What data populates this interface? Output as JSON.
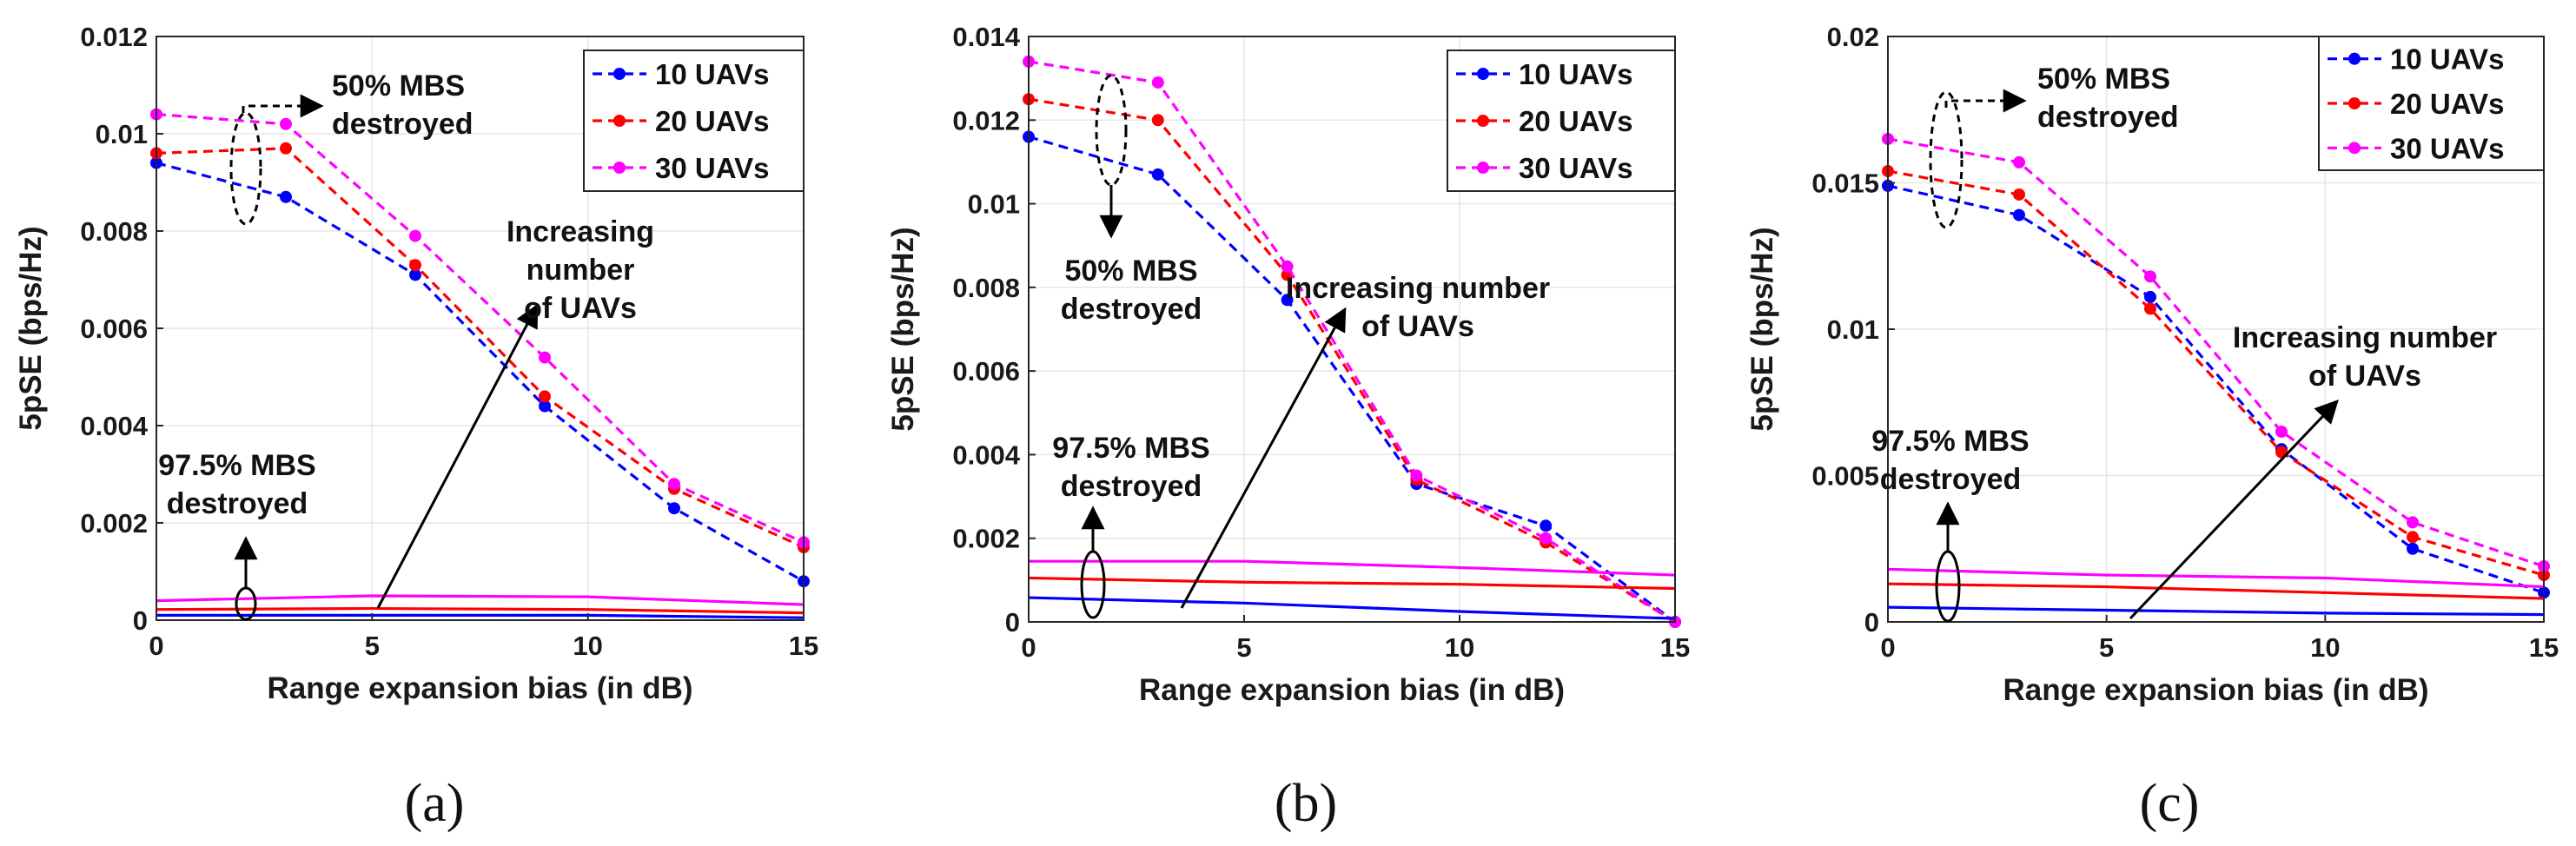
{
  "chart_data": [
    {
      "type": "line",
      "panel_caption": "(a)",
      "xlabel": "Range expansion bias (in dB)",
      "ylabel": "5pSE (bps/Hz)",
      "xlim": [
        0,
        15
      ],
      "ylim": [
        0,
        0.012
      ],
      "xticks": [
        0,
        5,
        10,
        15
      ],
      "yticks": [
        0,
        0.002,
        0.004,
        0.006,
        0.008,
        0.01,
        0.012
      ],
      "ytick_labels": [
        "0",
        "0.002",
        "0.004",
        "0.006",
        "0.008",
        "0.01",
        "0.012"
      ],
      "grid": true,
      "legend_position": "top-right",
      "series": [
        {
          "name": "10 UAVs",
          "color": "#0000ff",
          "style": "dashed",
          "markers": true,
          "x": [
            0,
            3,
            6,
            9,
            12,
            15
          ],
          "values": [
            0.0094,
            0.0087,
            0.0071,
            0.0044,
            0.0023,
            0.0008
          ]
        },
        {
          "name": "20 UAVs",
          "color": "#ff0000",
          "style": "dashed",
          "markers": true,
          "x": [
            0,
            3,
            6,
            9,
            12,
            15
          ],
          "values": [
            0.0096,
            0.0097,
            0.0073,
            0.0046,
            0.0027,
            0.0015
          ]
        },
        {
          "name": "30 UAVs",
          "color": "#ff00ff",
          "style": "dashed",
          "markers": true,
          "x": [
            0,
            3,
            6,
            9,
            12,
            15
          ],
          "values": [
            0.0104,
            0.0102,
            0.0079,
            0.0054,
            0.0028,
            0.0016
          ]
        },
        {
          "name": "10 UAVs (97.5% destroyed)",
          "color": "#0000ff",
          "style": "solid",
          "markers": false,
          "legend": false,
          "x": [
            0,
            5,
            10,
            15
          ],
          "values": [
            0.0001,
            0.0001,
            0.0001,
            5e-05
          ]
        },
        {
          "name": "20 UAVs (97.5% destroyed)",
          "color": "#ff0000",
          "style": "solid",
          "markers": false,
          "legend": false,
          "x": [
            0,
            5,
            10,
            15
          ],
          "values": [
            0.00022,
            0.00024,
            0.00022,
            0.00015
          ]
        },
        {
          "name": "30 UAVs (97.5% destroyed)",
          "color": "#ff00ff",
          "style": "solid",
          "markers": false,
          "legend": false,
          "x": [
            0,
            5,
            10,
            15
          ],
          "values": [
            0.0004,
            0.0005,
            0.00048,
            0.00032
          ]
        }
      ],
      "annotations": [
        {
          "lines": [
            "50% MBS",
            "destroyed"
          ]
        },
        {
          "lines": [
            "Increasing",
            "number",
            "of UAVs"
          ]
        },
        {
          "lines": [
            "97.5% MBS",
            "destroyed"
          ]
        }
      ]
    },
    {
      "type": "line",
      "panel_caption": "(b)",
      "xlabel": "Range expansion bias (in dB)",
      "ylabel": "5pSE (bps/Hz)",
      "xlim": [
        0,
        15
      ],
      "ylim": [
        0,
        0.014
      ],
      "xticks": [
        0,
        5,
        10,
        15
      ],
      "yticks": [
        0,
        0.002,
        0.004,
        0.006,
        0.008,
        0.01,
        0.012,
        0.014
      ],
      "ytick_labels": [
        "0",
        "0.002",
        "0.004",
        "0.006",
        "0.008",
        "0.01",
        "0.012",
        "0.014"
      ],
      "grid": true,
      "legend_position": "top-right",
      "series": [
        {
          "name": "10 UAVs",
          "color": "#0000ff",
          "style": "dashed",
          "markers": true,
          "x": [
            0,
            3,
            6,
            9,
            12,
            15
          ],
          "values": [
            0.0116,
            0.0107,
            0.0077,
            0.0033,
            0.0023,
            0.0
          ]
        },
        {
          "name": "20 UAVs",
          "color": "#ff0000",
          "style": "dashed",
          "markers": true,
          "x": [
            0,
            3,
            6,
            9,
            12,
            15
          ],
          "values": [
            0.0125,
            0.012,
            0.0083,
            0.0034,
            0.0019,
            0.0
          ]
        },
        {
          "name": "30 UAVs",
          "color": "#ff00ff",
          "style": "dashed",
          "markers": true,
          "x": [
            0,
            3,
            6,
            9,
            12,
            15
          ],
          "values": [
            0.0134,
            0.0129,
            0.0085,
            0.0035,
            0.002,
            0.0
          ]
        },
        {
          "name": "10 UAVs (97.5% destroyed)",
          "color": "#0000ff",
          "style": "solid",
          "markers": false,
          "legend": false,
          "x": [
            0,
            5,
            10,
            15
          ],
          "values": [
            0.00058,
            0.00045,
            0.00025,
            8e-05
          ]
        },
        {
          "name": "20 UAVs (97.5% destroyed)",
          "color": "#ff0000",
          "style": "solid",
          "markers": false,
          "legend": false,
          "x": [
            0,
            5,
            10,
            15
          ],
          "values": [
            0.00105,
            0.00095,
            0.0009,
            0.0008
          ]
        },
        {
          "name": "30 UAVs (97.5% destroyed)",
          "color": "#ff00ff",
          "style": "solid",
          "markers": false,
          "legend": false,
          "x": [
            0,
            5,
            10,
            15
          ],
          "values": [
            0.00145,
            0.00145,
            0.0013,
            0.00112
          ]
        }
      ],
      "annotations": [
        {
          "lines": [
            "50% MBS",
            "destroyed"
          ]
        },
        {
          "lines": [
            "Increasing number",
            "of UAVs"
          ]
        },
        {
          "lines": [
            "97.5% MBS",
            "destroyed"
          ]
        }
      ]
    },
    {
      "type": "line",
      "panel_caption": "(c)",
      "xlabel": "Range expansion bias (in dB)",
      "ylabel": "5pSE (bps/Hz)",
      "xlim": [
        0,
        15
      ],
      "ylim": [
        0,
        0.02
      ],
      "xticks": [
        0,
        5,
        10,
        15
      ],
      "yticks": [
        0,
        0.005,
        0.01,
        0.015,
        0.02
      ],
      "ytick_labels": [
        "0",
        "0.005",
        "0.01",
        "0.015",
        "0.02"
      ],
      "grid": true,
      "legend_position": "top-right",
      "series": [
        {
          "name": "10 UAVs",
          "color": "#0000ff",
          "style": "dashed",
          "markers": true,
          "x": [
            0,
            3,
            6,
            9,
            12,
            15
          ],
          "values": [
            0.0149,
            0.0139,
            0.0111,
            0.0059,
            0.0025,
            0.001
          ]
        },
        {
          "name": "20 UAVs",
          "color": "#ff0000",
          "style": "dashed",
          "markers": true,
          "x": [
            0,
            3,
            6,
            9,
            12,
            15
          ],
          "values": [
            0.0154,
            0.0146,
            0.0107,
            0.0058,
            0.0029,
            0.0016
          ]
        },
        {
          "name": "30 UAVs",
          "color": "#ff00ff",
          "style": "dashed",
          "markers": true,
          "x": [
            0,
            3,
            6,
            9,
            12,
            15
          ],
          "values": [
            0.0165,
            0.0157,
            0.0118,
            0.0065,
            0.0034,
            0.0019
          ]
        },
        {
          "name": "10 UAVs (97.5% destroyed)",
          "color": "#0000ff",
          "style": "solid",
          "markers": false,
          "legend": false,
          "x": [
            0,
            5,
            10,
            15
          ],
          "values": [
            0.0005,
            0.0004,
            0.0003,
            0.00025
          ]
        },
        {
          "name": "20 UAVs (97.5% destroyed)",
          "color": "#ff0000",
          "style": "solid",
          "markers": false,
          "legend": false,
          "x": [
            0,
            5,
            10,
            15
          ],
          "values": [
            0.0013,
            0.0012,
            0.001,
            0.0008
          ]
        },
        {
          "name": "30 UAVs (97.5% destroyed)",
          "color": "#ff00ff",
          "style": "solid",
          "markers": false,
          "legend": false,
          "x": [
            0,
            5,
            10,
            15
          ],
          "values": [
            0.0018,
            0.0016,
            0.0015,
            0.0012
          ]
        }
      ],
      "annotations": [
        {
          "lines": [
            "50% MBS",
            "destroyed"
          ]
        },
        {
          "lines": [
            "Increasing number",
            "of UAVs"
          ]
        },
        {
          "lines": [
            "97.5% MBS",
            "destroyed"
          ]
        }
      ]
    }
  ]
}
